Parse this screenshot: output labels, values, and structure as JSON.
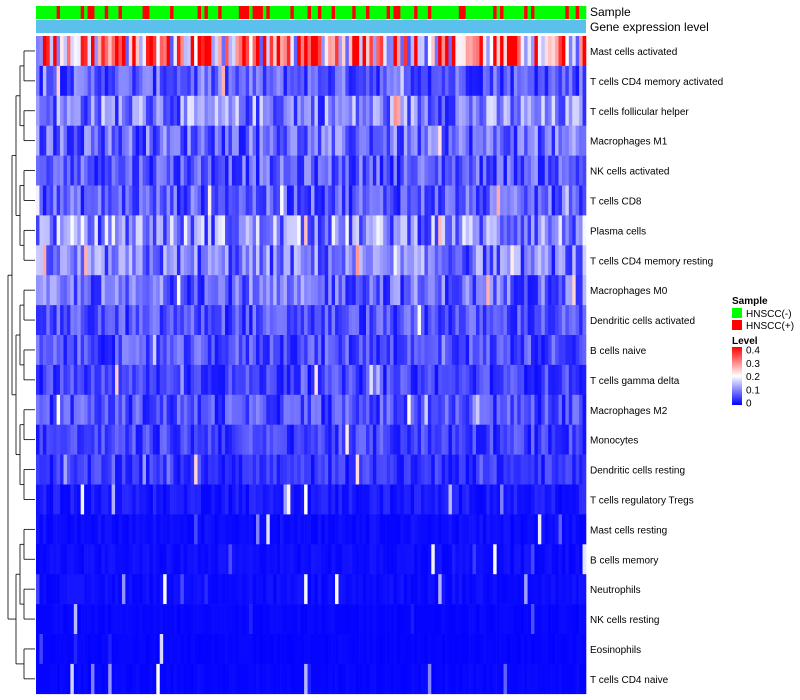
{
  "chart_data": {
    "type": "heatmap",
    "n_samples": 160,
    "annotation_tracks": [
      {
        "label": "Sample"
      },
      {
        "label": "Gene expression level"
      }
    ],
    "rows": [
      {
        "label": "Mast cells activated",
        "mean": 0.28
      },
      {
        "label": "T cells CD4 memory activated",
        "mean": 0.07
      },
      {
        "label": "T cells follicular helper",
        "mean": 0.1
      },
      {
        "label": "Macrophages M1",
        "mean": 0.08
      },
      {
        "label": "NK cells activated",
        "mean": 0.07
      },
      {
        "label": "T cells CD8",
        "mean": 0.07
      },
      {
        "label": "Plasma cells",
        "mean": 0.11
      },
      {
        "label": "T cells CD4 memory resting",
        "mean": 0.09
      },
      {
        "label": "Macrophages M0",
        "mean": 0.08
      },
      {
        "label": "Dendritic cells activated",
        "mean": 0.06
      },
      {
        "label": "B cells naive",
        "mean": 0.06
      },
      {
        "label": "T cells gamma delta",
        "mean": 0.05
      },
      {
        "label": "Macrophages M2",
        "mean": 0.06
      },
      {
        "label": "Monocytes",
        "mean": 0.05
      },
      {
        "label": "Dendritic cells resting",
        "mean": 0.04
      },
      {
        "label": "T cells regulatory  Tregs",
        "mean": 0.02
      },
      {
        "label": "Mast cells resting",
        "mean": 0.01
      },
      {
        "label": "B cells memory",
        "mean": 0.01
      },
      {
        "label": "Neutrophils",
        "mean": 0.01
      },
      {
        "label": "NK cells resting",
        "mean": 0.005
      },
      {
        "label": "Eosinophils",
        "mean": 0.004
      },
      {
        "label": "T cells CD4 naive",
        "mean": 0.005
      }
    ],
    "legend_sample": {
      "title": "Sample",
      "entries": [
        {
          "label": "HNSCC(-)",
          "color": "#00ff00"
        },
        {
          "label": "HNSCC(+)",
          "color": "#ff0000"
        }
      ]
    },
    "legend_level": {
      "title": "Level",
      "ticks": [
        "0.4",
        "0.3",
        "0.2",
        "0.1",
        "0"
      ],
      "range": [
        0,
        0.4
      ],
      "colors": {
        "low": "#0000ff",
        "mid": "#ffffff",
        "high": "#ff0000"
      }
    },
    "colors": {
      "sample_negative": "#00ff00",
      "sample_positive": "#ff0000",
      "gene_expression_track": "#5bc0eb"
    }
  }
}
